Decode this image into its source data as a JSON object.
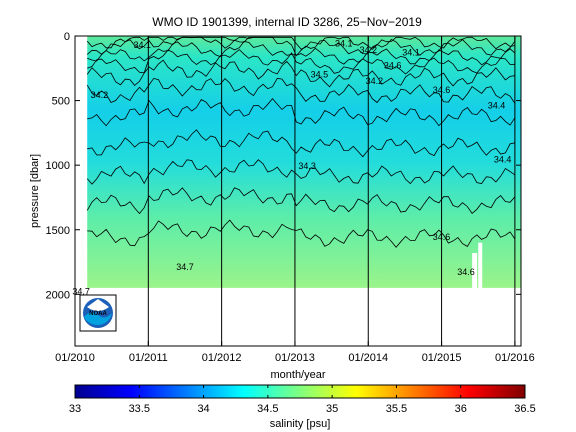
{
  "chart_data": {
    "type": "heatmap",
    "title": "WMO ID 1901399, internal ID 3286, 25−Nov−2019",
    "xlabel": "month/year",
    "ylabel": "pressure [dbar]",
    "x_ticks": [
      "01/2010",
      "01/2011",
      "01/2012",
      "01/2013",
      "01/2014",
      "01/2015",
      "01/2016"
    ],
    "xlim": [
      "2010-01",
      "2016-02"
    ],
    "y_ticks": [
      0,
      500,
      1000,
      1500,
      2000
    ],
    "ylim": [
      2400,
      0
    ],
    "y_reversed": true,
    "colorbar": {
      "label": "salinity [psu]",
      "ticks": [
        "33",
        "33.5",
        "34",
        "34.5",
        "35",
        "35.5",
        "36",
        "36.5"
      ],
      "range": [
        33,
        36.5
      ],
      "colormap": "jet"
    },
    "value_range": {
      "min_psu": 34.1,
      "max_psu": 34.7
    },
    "max_pressure_dbar": 1950,
    "contour_labels": [
      {
        "text": "34.1",
        "x": "2010-12",
        "p": 60
      },
      {
        "text": "34.2",
        "x": "2010-05",
        "p": 450
      },
      {
        "text": "34.3",
        "x": "2013-03",
        "p": 1000
      },
      {
        "text": "34.5",
        "x": "2013-05",
        "p": 290
      },
      {
        "text": "34.1",
        "x": "2013-09",
        "p": 50
      },
      {
        "text": "34.2",
        "x": "2014-01",
        "p": 100
      },
      {
        "text": "34.2",
        "x": "2014-02",
        "p": 340
      },
      {
        "text": "34.6",
        "x": "2014-05",
        "p": 220
      },
      {
        "text": "34.1",
        "x": "2014-08",
        "p": 120
      },
      {
        "text": "34.6",
        "x": "2015-01",
        "p": 410
      },
      {
        "text": "34.6",
        "x": "2015-01",
        "p": 1550
      },
      {
        "text": "34.4",
        "x": "2015-10",
        "p": 530
      },
      {
        "text": "34.4",
        "x": "2015-11",
        "p": 950
      },
      {
        "text": "34.7",
        "x": "2011-07",
        "p": 1780
      },
      {
        "text": "34.6",
        "x": "2015-05",
        "p": 1820
      },
      {
        "text": "34.7",
        "x": "2010-02",
        "p": 1970
      }
    ],
    "profile_dates_marked": [
      "2011-01",
      "2012-01",
      "2013-01",
      "2014-01",
      "2015-01",
      "2016-01"
    ]
  },
  "logo": {
    "text": "NOAA",
    "colors": [
      "#1c5fb8",
      "#00a3e0",
      "#ffffff"
    ]
  }
}
